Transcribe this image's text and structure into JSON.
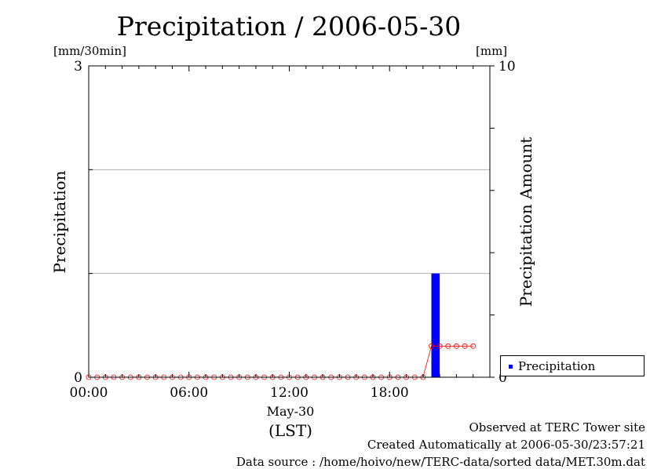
{
  "chart_data": {
    "type": "bar",
    "title": "Precipitation / 2006-05-30",
    "left_axis": {
      "unit": "[mm/30min]",
      "label": "Precipitation",
      "ylim": [
        0,
        3
      ],
      "tick_labels": [
        "0",
        "3"
      ]
    },
    "right_axis": {
      "unit": "[mm]",
      "label": "Precipitation Amount",
      "ylim": [
        0,
        10
      ],
      "tick_labels": [
        "0",
        "10"
      ]
    },
    "x_axis": {
      "tick_labels": [
        "00:00",
        "06:00",
        "12:00",
        "18:00"
      ],
      "tick_hours": [
        0,
        6,
        12,
        18
      ],
      "range_hours": [
        0,
        24
      ],
      "date_label": "May-30",
      "timezone_label": "(LST)"
    },
    "grid": {
      "horizontal_values": [
        1,
        2
      ]
    },
    "series": [
      {
        "name": "Precipitation",
        "type": "bar",
        "axis": "left",
        "color": "#0000ff",
        "points": [
          {
            "x": "20:30",
            "value": 1.0
          }
        ]
      },
      {
        "type": "line",
        "axis": "right",
        "color": "#ff0000",
        "marker": "open-circle",
        "x": [
          "00:00",
          "00:30",
          "01:00",
          "01:30",
          "02:00",
          "02:30",
          "03:00",
          "03:30",
          "04:00",
          "04:30",
          "05:00",
          "05:30",
          "06:00",
          "06:30",
          "07:00",
          "07:30",
          "08:00",
          "08:30",
          "09:00",
          "09:30",
          "10:00",
          "10:30",
          "11:00",
          "11:30",
          "12:00",
          "12:30",
          "13:00",
          "13:30",
          "14:00",
          "14:30",
          "15:00",
          "15:30",
          "16:00",
          "16:30",
          "17:00",
          "17:30",
          "18:00",
          "18:30",
          "19:00",
          "19:30",
          "20:00",
          "20:30",
          "21:00",
          "21:30",
          "22:00",
          "22:30",
          "23:00"
        ],
        "values": [
          0,
          0,
          0,
          0,
          0,
          0,
          0,
          0,
          0,
          0,
          0,
          0,
          0,
          0,
          0,
          0,
          0,
          0,
          0,
          0,
          0,
          0,
          0,
          0,
          0,
          0,
          0,
          0,
          0,
          0,
          0,
          0,
          0,
          0,
          0,
          0,
          0,
          0,
          0,
          0,
          0,
          1.0,
          1.0,
          1.0,
          1.0,
          1.0,
          1.0
        ]
      }
    ],
    "legend": {
      "position": "bottom-right",
      "entries": [
        "Precipitation"
      ]
    }
  },
  "footer": {
    "line1": "Observed at TERC Tower site",
    "line2": "Created Automatically at 2006-05-30/23:57:21",
    "line3": "Data source : /home/hoivo/new/TERC-data/sorted  data/MET.30m.dat"
  }
}
